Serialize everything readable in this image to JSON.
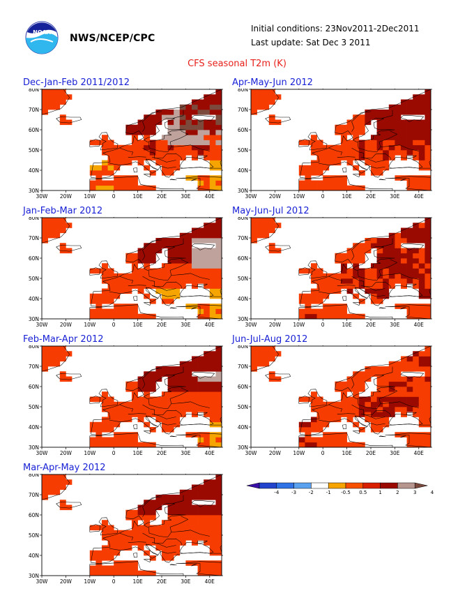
{
  "header": {
    "org": "NWS/NCEP/CPC",
    "initial_conditions": "Initial conditions: 23Nov2011-2Dec2011",
    "last_update": "Last update: Sat Dec 3 2011",
    "title": "CFS seasonal T2m (K)"
  },
  "logo": {
    "name": "noaa-logo",
    "text": "NOAA"
  },
  "axes": {
    "lon_labels": [
      "30W",
      "20W",
      "10W",
      "0",
      "10E",
      "20E",
      "30E",
      "40E"
    ],
    "lat_labels": [
      "30N",
      "40N",
      "50N",
      "60N",
      "70N",
      "80N"
    ],
    "lon_range": [
      -30,
      45
    ],
    "lat_range": [
      30,
      80
    ]
  },
  "panels": [
    {
      "title": "Dec-Jan-Feb 2011/2012",
      "profile": "djf"
    },
    {
      "title": "Apr-May-Jun 2012",
      "profile": "amj"
    },
    {
      "title": "Jan-Feb-Mar 2012",
      "profile": "jfm"
    },
    {
      "title": "May-Jun-Jul 2012",
      "profile": "mjj"
    },
    {
      "title": "Feb-Mar-Apr 2012",
      "profile": "fma"
    },
    {
      "title": "Jun-Jul-Aug 2012",
      "profile": "jja"
    },
    {
      "title": "Mar-Apr-May 2012",
      "profile": "mam"
    }
  ],
  "colorbar": {
    "labels": [
      "-4",
      "-3",
      "-2",
      "-1",
      "-0.5",
      "0.5",
      "1",
      "2",
      "3",
      "4"
    ],
    "colors": [
      "#3a10a8",
      "#2244cc",
      "#2e72e6",
      "#5aa2f0",
      "#ffffff",
      "#f6a400",
      "#f65000",
      "#d82000",
      "#9b0a00",
      "#b89690",
      "#7b4a3c"
    ]
  },
  "colors": {
    "c1": "#f6a400",
    "c2": "#f63c00",
    "c3": "#9b0a00",
    "c4": "#c0a29c",
    "c5": "#7b4a3c",
    "panel_title": "#1a22d6",
    "main_title": "#e8201a"
  }
}
